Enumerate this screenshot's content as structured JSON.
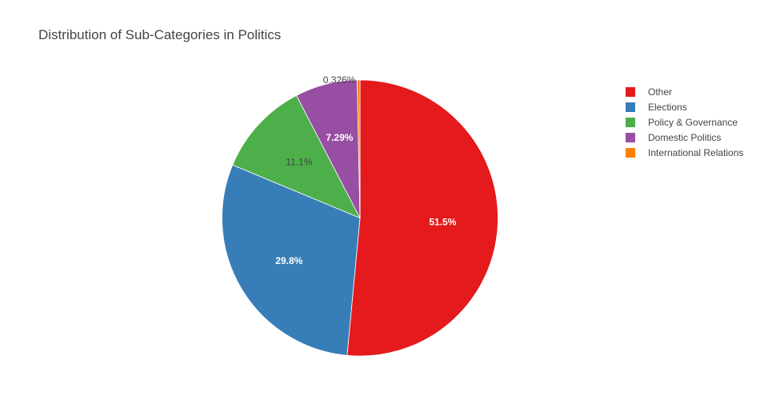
{
  "chart_data": {
    "type": "pie",
    "title": "Distribution of Sub-Categories in Politics",
    "legend_position": "top-right",
    "slices": [
      {
        "label": "Other",
        "value": 51.5,
        "display": "51.5%",
        "color": "#e41a1c",
        "text_color": "#ffffff"
      },
      {
        "label": "Elections",
        "value": 29.8,
        "display": "29.8%",
        "color": "#377eb8",
        "text_color": "#ffffff"
      },
      {
        "label": "Policy & Governance",
        "value": 11.1,
        "display": "11.1%",
        "color": "#4daf4a",
        "text_color": "#444444"
      },
      {
        "label": "Domestic Politics",
        "value": 7.29,
        "display": "7.29%",
        "color": "#984ea3",
        "text_color": "#ffffff"
      },
      {
        "label": "International Relations",
        "value": 0.326,
        "display": "0.326%",
        "color": "#ff7f00",
        "text_color": "#444444"
      }
    ]
  }
}
